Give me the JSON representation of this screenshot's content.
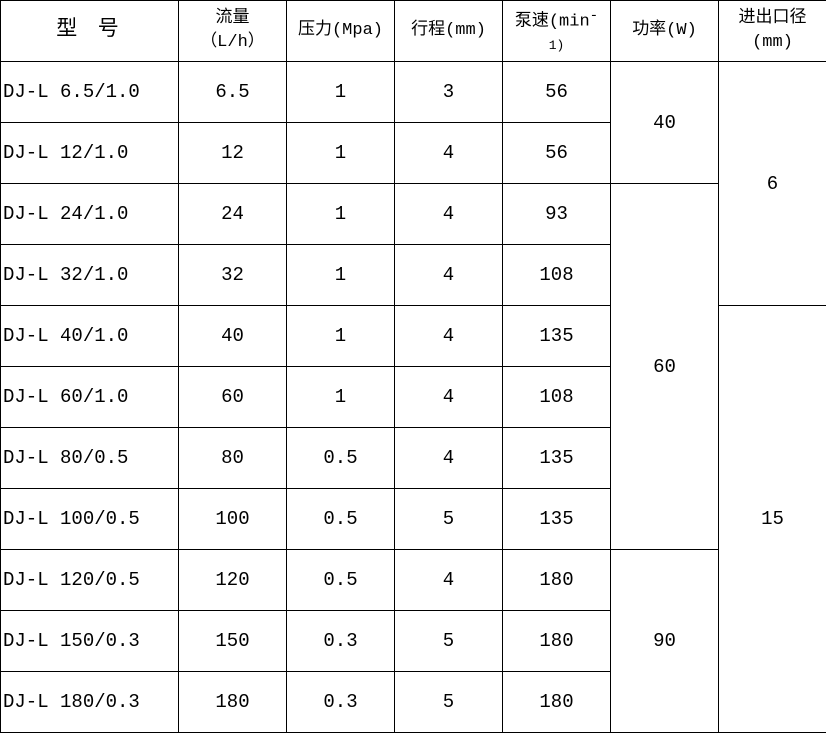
{
  "headers": {
    "model": "型 号",
    "flow_1": "流量",
    "flow_2": "（L/h）",
    "pressure": "压力(Mpa)",
    "stroke": "行程(mm)",
    "speed_1": "泵速(min",
    "speed_sup": "-",
    "speed_2": "1)",
    "power": "功率(W)",
    "port_1": "进出口径",
    "port_2": "(mm)"
  },
  "rows": [
    {
      "model": "DJ-L 6.5/1.0",
      "flow": "6.5",
      "pressure": "1",
      "stroke": "3",
      "speed": "56"
    },
    {
      "model": "DJ-L 12/1.0",
      "flow": "12",
      "pressure": "1",
      "stroke": "4",
      "speed": "56"
    },
    {
      "model": "DJ-L 24/1.0",
      "flow": "24",
      "pressure": "1",
      "stroke": "4",
      "speed": "93"
    },
    {
      "model": "DJ-L 32/1.0",
      "flow": "32",
      "pressure": "1",
      "stroke": "4",
      "speed": "108"
    },
    {
      "model": "DJ-L 40/1.0",
      "flow": "40",
      "pressure": "1",
      "stroke": "4",
      "speed": "135"
    },
    {
      "model": "DJ-L 60/1.0",
      "flow": "60",
      "pressure": "1",
      "stroke": "4",
      "speed": "108"
    },
    {
      "model": "DJ-L 80/0.5",
      "flow": "80",
      "pressure": "0.5",
      "stroke": "4",
      "speed": "135"
    },
    {
      "model": "DJ-L 100/0.5",
      "flow": "100",
      "pressure": "0.5",
      "stroke": "5",
      "speed": "135"
    },
    {
      "model": "DJ-L 120/0.5",
      "flow": "120",
      "pressure": "0.5",
      "stroke": "4",
      "speed": "180"
    },
    {
      "model": "DJ-L 150/0.3",
      "flow": "150",
      "pressure": "0.3",
      "stroke": "5",
      "speed": "180"
    },
    {
      "model": "DJ-L 180/0.3",
      "flow": "180",
      "pressure": "0.3",
      "stroke": "5",
      "speed": "180"
    }
  ],
  "power_groups": [
    {
      "value": "40",
      "rows": 2
    },
    {
      "value": "60",
      "rows": 6
    },
    {
      "value": "90",
      "rows": 3
    }
  ],
  "port_groups": [
    {
      "value": "6",
      "rows": 4
    },
    {
      "value": "15",
      "rows": 7
    }
  ]
}
